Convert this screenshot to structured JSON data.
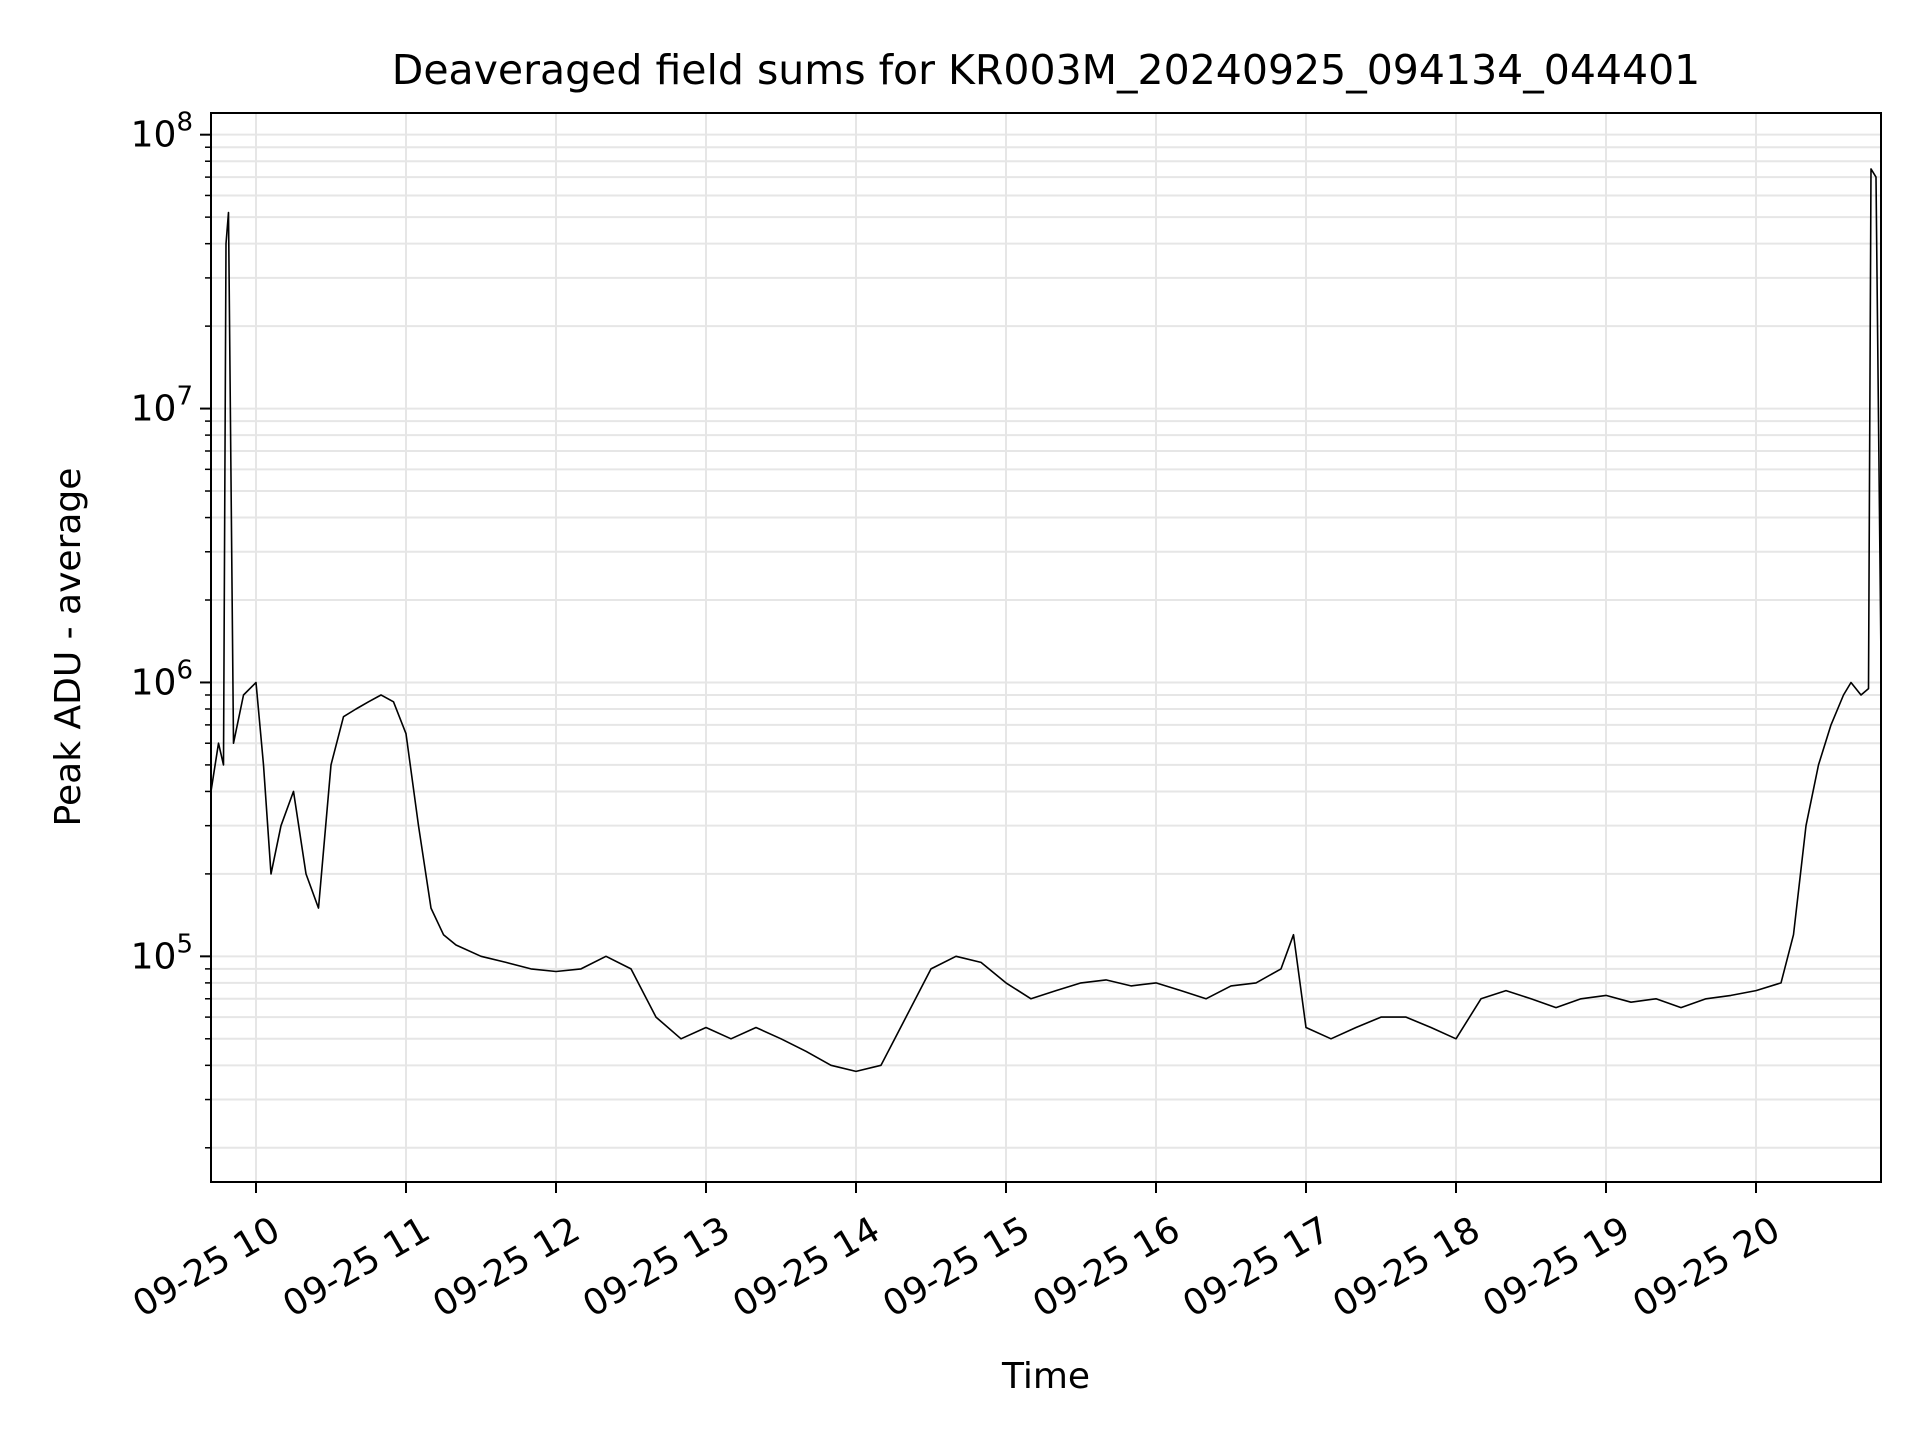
{
  "chart_data": {
    "type": "line",
    "title": "Deaveraged field sums for KR003M_20240925_094134_044401",
    "xlabel": "Time",
    "ylabel": "Peak ADU - average",
    "yscale": "log",
    "ylim": [
      15000,
      120000000
    ],
    "xlim": [
      "2024-09-25 09:42",
      "2024-09-25 20:50"
    ],
    "grid": true,
    "grid_color": "#e6e6e6",
    "line_color": "#000000",
    "x_ticks": [
      "09-25 10",
      "09-25 11",
      "09-25 12",
      "09-25 13",
      "09-25 14",
      "09-25 15",
      "09-25 16",
      "09-25 17",
      "09-25 18",
      "09-25 19",
      "09-25 20"
    ],
    "y_ticks": [
      {
        "base": "10",
        "exp": "5",
        "value": 100000
      },
      {
        "base": "10",
        "exp": "6",
        "value": 1000000
      },
      {
        "base": "10",
        "exp": "7",
        "value": 10000000
      },
      {
        "base": "10",
        "exp": "8",
        "value": 100000000
      }
    ],
    "series": [
      {
        "points": [
          [
            "09:42",
            400000
          ],
          [
            "09:45",
            600000
          ],
          [
            "09:47",
            500000
          ],
          [
            "09:48",
            40000000
          ],
          [
            "09:49",
            52000000
          ],
          [
            "09:51",
            600000
          ],
          [
            "09:55",
            900000
          ],
          [
            "10:00",
            1000000
          ],
          [
            "10:03",
            500000
          ],
          [
            "10:06",
            200000
          ],
          [
            "10:10",
            300000
          ],
          [
            "10:15",
            400000
          ],
          [
            "10:20",
            200000
          ],
          [
            "10:25",
            150000
          ],
          [
            "10:30",
            500000
          ],
          [
            "10:35",
            750000
          ],
          [
            "10:40",
            800000
          ],
          [
            "10:45",
            850000
          ],
          [
            "10:50",
            900000
          ],
          [
            "10:55",
            850000
          ],
          [
            "11:00",
            650000
          ],
          [
            "11:05",
            300000
          ],
          [
            "11:10",
            150000
          ],
          [
            "11:15",
            120000
          ],
          [
            "11:20",
            110000
          ],
          [
            "11:30",
            100000
          ],
          [
            "11:40",
            95000
          ],
          [
            "11:50",
            90000
          ],
          [
            "12:00",
            88000
          ],
          [
            "12:10",
            90000
          ],
          [
            "12:20",
            100000
          ],
          [
            "12:30",
            90000
          ],
          [
            "12:40",
            60000
          ],
          [
            "12:50",
            50000
          ],
          [
            "13:00",
            55000
          ],
          [
            "13:10",
            50000
          ],
          [
            "13:20",
            55000
          ],
          [
            "13:30",
            50000
          ],
          [
            "13:40",
            45000
          ],
          [
            "13:50",
            40000
          ],
          [
            "14:00",
            38000
          ],
          [
            "14:10",
            40000
          ],
          [
            "14:20",
            60000
          ],
          [
            "14:30",
            90000
          ],
          [
            "14:40",
            100000
          ],
          [
            "14:50",
            95000
          ],
          [
            "15:00",
            80000
          ],
          [
            "15:10",
            70000
          ],
          [
            "15:20",
            75000
          ],
          [
            "15:30",
            80000
          ],
          [
            "15:40",
            82000
          ],
          [
            "15:50",
            78000
          ],
          [
            "16:00",
            80000
          ],
          [
            "16:10",
            75000
          ],
          [
            "16:20",
            70000
          ],
          [
            "16:30",
            78000
          ],
          [
            "16:40",
            80000
          ],
          [
            "16:50",
            90000
          ],
          [
            "16:55",
            120000
          ],
          [
            "17:00",
            55000
          ],
          [
            "17:10",
            50000
          ],
          [
            "17:20",
            55000
          ],
          [
            "17:30",
            60000
          ],
          [
            "17:40",
            60000
          ],
          [
            "17:50",
            55000
          ],
          [
            "18:00",
            50000
          ],
          [
            "18:10",
            70000
          ],
          [
            "18:20",
            75000
          ],
          [
            "18:30",
            70000
          ],
          [
            "18:40",
            65000
          ],
          [
            "18:50",
            70000
          ],
          [
            "19:00",
            72000
          ],
          [
            "19:10",
            68000
          ],
          [
            "19:20",
            70000
          ],
          [
            "19:30",
            65000
          ],
          [
            "19:40",
            70000
          ],
          [
            "19:50",
            72000
          ],
          [
            "20:00",
            75000
          ],
          [
            "20:10",
            80000
          ],
          [
            "20:15",
            120000
          ],
          [
            "20:20",
            300000
          ],
          [
            "20:25",
            500000
          ],
          [
            "20:30",
            700000
          ],
          [
            "20:35",
            900000
          ],
          [
            "20:38",
            1000000
          ],
          [
            "20:42",
            900000
          ],
          [
            "20:45",
            950000
          ],
          [
            "20:46",
            75000000
          ],
          [
            "20:48",
            70000000
          ],
          [
            "20:50",
            1200000
          ]
        ]
      }
    ]
  }
}
